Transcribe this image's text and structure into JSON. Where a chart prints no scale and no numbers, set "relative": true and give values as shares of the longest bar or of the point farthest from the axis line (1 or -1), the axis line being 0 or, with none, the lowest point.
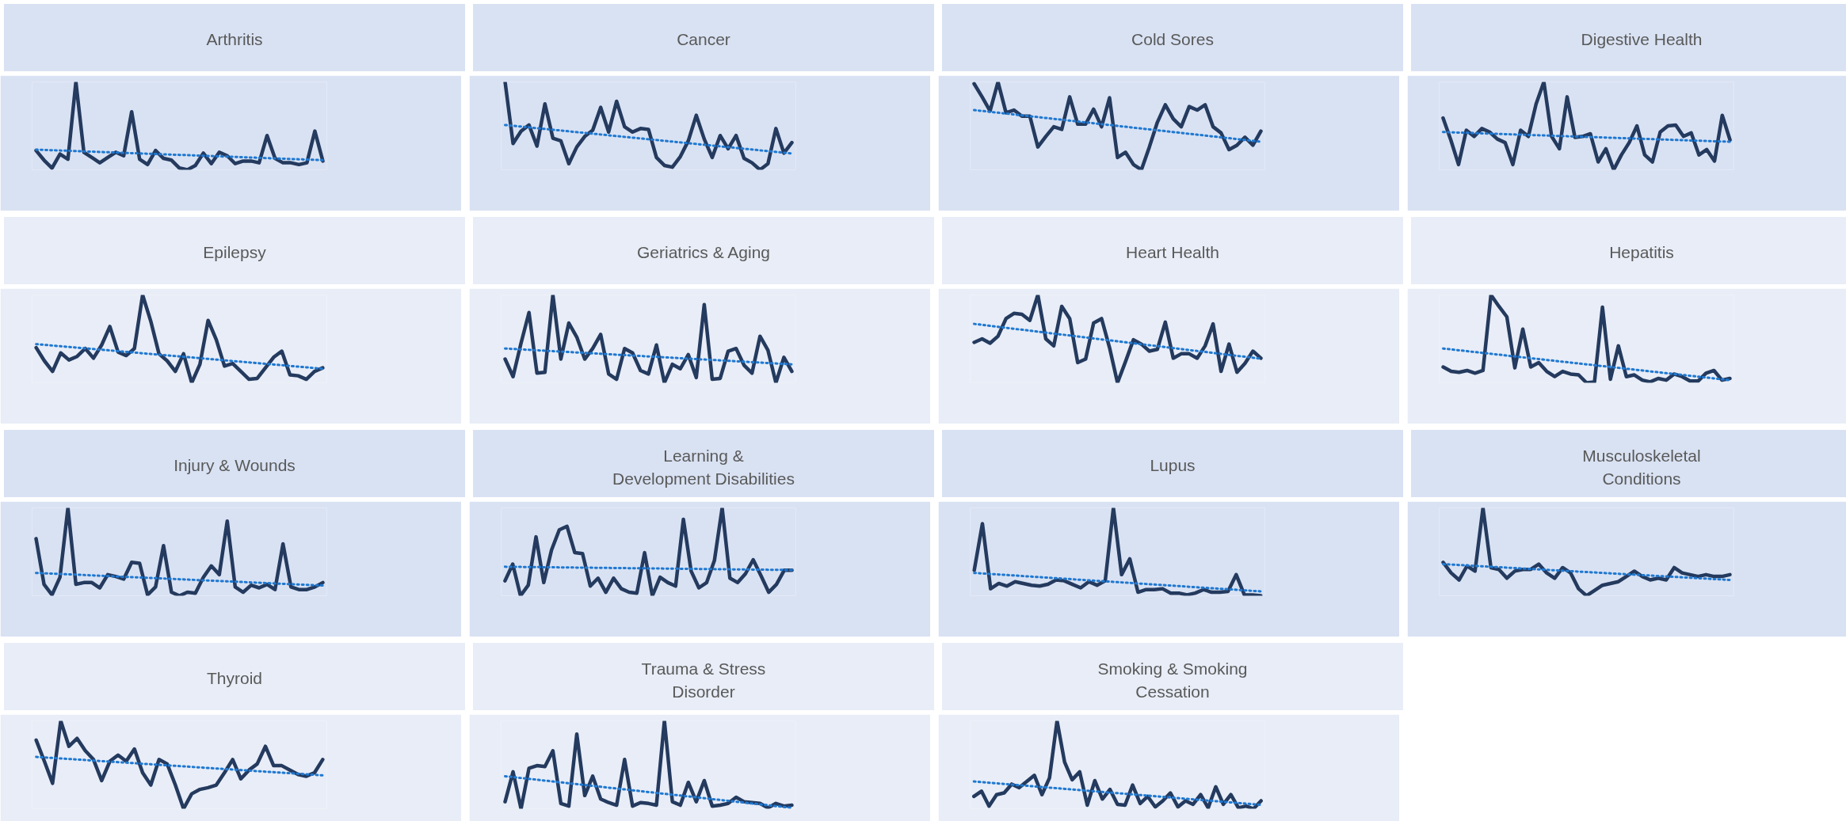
{
  "chart_data": [
    {
      "type": "line",
      "title": "Arthritis",
      "relative": true,
      "categories": [
        null,
        null,
        null,
        null,
        null,
        null,
        null,
        null,
        null,
        null,
        null,
        null,
        null,
        null,
        null,
        null,
        null,
        null,
        null,
        null,
        null,
        null,
        null,
        null,
        null,
        null,
        null,
        null,
        null,
        null,
        null,
        null,
        null,
        null,
        null,
        null,
        null
      ],
      "series": [
        {
          "color": "#243a5e",
          "line_style": "solid",
          "values": [
            0.22,
            0.11,
            0.02,
            0.18,
            0.12,
            1,
            0.2,
            0.14,
            0.08,
            0.14,
            0.2,
            0.16,
            0.66,
            0.12,
            0.06,
            0.22,
            0.13,
            0.11,
            0.02,
            0,
            0.05,
            0.19,
            0.07,
            0.2,
            0.16,
            0.07,
            0.1,
            0.1,
            0.08,
            0.39,
            0.13,
            0.08,
            0.08,
            0.06,
            0.08,
            0.44,
            0.1
          ]
        },
        {
          "type": "line",
          "color": "#1f78d1",
          "line_style": "dotted",
          "values": [
            0.23,
            0.227,
            0.223,
            0.22,
            0.217,
            0.213,
            0.21,
            0.207,
            0.203,
            0.2,
            0.197,
            0.193,
            0.19,
            0.187,
            0.183,
            0.18,
            0.177,
            0.173,
            0.17,
            0.167,
            0.163,
            0.16,
            0.157,
            0.153,
            0.15,
            0.147,
            0.143,
            0.14,
            0.137,
            0.133,
            0.13,
            0.127,
            0.123,
            0.12,
            0.117,
            0.113,
            0.11
          ]
        }
      ]
    },
    {
      "type": "line",
      "title": "Cancer",
      "relative": true,
      "categories": [
        null,
        null,
        null,
        null,
        null,
        null,
        null,
        null,
        null,
        null,
        null,
        null,
        null,
        null,
        null,
        null,
        null,
        null,
        null,
        null,
        null,
        null,
        null,
        null,
        null,
        null,
        null,
        null,
        null,
        null,
        null,
        null,
        null,
        null,
        null,
        null,
        null
      ],
      "series": [
        {
          "color": "#243a5e",
          "line_style": "solid",
          "values": [
            1,
            0.3,
            0.44,
            0.51,
            0.27,
            0.75,
            0.36,
            0.33,
            0.07,
            0.26,
            0.38,
            0.45,
            0.71,
            0.43,
            0.78,
            0.49,
            0.43,
            0.47,
            0.46,
            0.14,
            0.05,
            0.03,
            0.15,
            0.33,
            0.62,
            0.35,
            0.14,
            0.39,
            0.24,
            0.39,
            0.13,
            0.08,
            0,
            0.07,
            0.47,
            0.19,
            0.31
          ]
        },
        {
          "type": "line",
          "color": "#1f78d1",
          "line_style": "dotted",
          "values": [
            0.51,
            0.501,
            0.492,
            0.483,
            0.474,
            0.465,
            0.456,
            0.447,
            0.438,
            0.429,
            0.42,
            0.411,
            0.402,
            0.393,
            0.384,
            0.375,
            0.366,
            0.357,
            0.348,
            0.339,
            0.33,
            0.321,
            0.312,
            0.303,
            0.294,
            0.285,
            0.276,
            0.267,
            0.258,
            0.249,
            0.24,
            0.231,
            0.222,
            0.213,
            0.204,
            0.195,
            0.186
          ]
        }
      ]
    },
    {
      "type": "line",
      "title": "Cold Sores",
      "relative": true,
      "categories": [
        null,
        null,
        null,
        null,
        null,
        null,
        null,
        null,
        null,
        null,
        null,
        null,
        null,
        null,
        null,
        null,
        null,
        null,
        null,
        null,
        null,
        null,
        null,
        null,
        null,
        null,
        null,
        null,
        null,
        null,
        null,
        null,
        null,
        null,
        null,
        null,
        null
      ],
      "series": [
        {
          "color": "#243a5e",
          "line_style": "solid",
          "values": [
            0.98,
            0.83,
            0.67,
            1,
            0.65,
            0.68,
            0.61,
            0.61,
            0.26,
            0.38,
            0.49,
            0.46,
            0.83,
            0.52,
            0.52,
            0.69,
            0.49,
            0.82,
            0.14,
            0.2,
            0.06,
            0,
            0.26,
            0.54,
            0.74,
            0.58,
            0.49,
            0.72,
            0.68,
            0.74,
            0.49,
            0.42,
            0.23,
            0.28,
            0.37,
            0.28,
            0.44
          ]
        },
        {
          "type": "line",
          "color": "#1f78d1",
          "line_style": "dotted",
          "values": [
            0.68,
            0.67,
            0.66,
            0.65,
            0.64,
            0.63,
            0.62,
            0.61,
            0.6,
            0.59,
            0.58,
            0.57,
            0.56,
            0.55,
            0.54,
            0.53,
            0.52,
            0.51,
            0.5,
            0.49,
            0.48,
            0.47,
            0.46,
            0.45,
            0.44,
            0.43,
            0.42,
            0.41,
            0.4,
            0.39,
            0.38,
            0.37,
            0.36,
            0.35,
            0.34,
            0.33,
            0.32
          ]
        }
      ]
    },
    {
      "type": "line",
      "title": "Digestive Health",
      "relative": true,
      "categories": [
        null,
        null,
        null,
        null,
        null,
        null,
        null,
        null,
        null,
        null,
        null,
        null,
        null,
        null,
        null,
        null,
        null,
        null,
        null,
        null,
        null,
        null,
        null,
        null,
        null,
        null,
        null,
        null,
        null,
        null,
        null,
        null,
        null,
        null,
        null,
        null,
        null,
        null
      ],
      "series": [
        {
          "color": "#243a5e",
          "line_style": "solid",
          "values": [
            0.59,
            0.34,
            0.06,
            0.45,
            0.38,
            0.47,
            0.43,
            0.35,
            0.31,
            0.06,
            0.45,
            0.38,
            0.75,
            1,
            0.38,
            0.24,
            0.83,
            0.37,
            0.38,
            0.41,
            0.09,
            0.24,
            0,
            0.17,
            0.31,
            0.5,
            0.17,
            0.09,
            0.43,
            0.5,
            0.51,
            0.38,
            0.42,
            0.17,
            0.23,
            0.1,
            0.62,
            0.34
          ]
        },
        {
          "type": "line",
          "color": "#1f78d1",
          "line_style": "dotted",
          "values": [
            0.43,
            0.427,
            0.424,
            0.421,
            0.418,
            0.415,
            0.412,
            0.409,
            0.406,
            0.403,
            0.4,
            0.397,
            0.394,
            0.391,
            0.388,
            0.385,
            0.382,
            0.379,
            0.376,
            0.373,
            0.37,
            0.367,
            0.364,
            0.361,
            0.358,
            0.355,
            0.352,
            0.349,
            0.346,
            0.343,
            0.34,
            0.337,
            0.334,
            0.331,
            0.328,
            0.325,
            0.322,
            0.319
          ]
        }
      ]
    },
    {
      "type": "line",
      "title": "Epilepsy",
      "relative": true,
      "categories": [
        null,
        null,
        null,
        null,
        null,
        null,
        null,
        null,
        null,
        null,
        null,
        null,
        null,
        null,
        null,
        null,
        null,
        null,
        null,
        null,
        null,
        null,
        null,
        null,
        null,
        null,
        null,
        null,
        null,
        null,
        null,
        null,
        null,
        null,
        null,
        null
      ],
      "series": [
        {
          "color": "#243a5e",
          "line_style": "solid",
          "values": [
            0.4,
            0.25,
            0.13,
            0.34,
            0.26,
            0.3,
            0.39,
            0.28,
            0.43,
            0.64,
            0.35,
            0.31,
            0.39,
            1,
            0.7,
            0.33,
            0.25,
            0.13,
            0.33,
            0,
            0.21,
            0.71,
            0.49,
            0.19,
            0.22,
            0.13,
            0.04,
            0.05,
            0.17,
            0.29,
            0.36,
            0.09,
            0.08,
            0.04,
            0.13,
            0.17
          ]
        },
        {
          "type": "line",
          "color": "#1f78d1",
          "line_style": "dotted",
          "values": [
            0.44,
            0.432,
            0.424,
            0.416,
            0.408,
            0.4,
            0.392,
            0.384,
            0.376,
            0.368,
            0.36,
            0.352,
            0.344,
            0.336,
            0.328,
            0.32,
            0.312,
            0.304,
            0.296,
            0.288,
            0.28,
            0.272,
            0.264,
            0.256,
            0.248,
            0.24,
            0.232,
            0.224,
            0.216,
            0.208,
            0.2,
            0.192,
            0.184,
            0.176,
            0.168,
            0.16
          ]
        }
      ]
    },
    {
      "type": "line",
      "title": "Geriatrics & Aging",
      "relative": true,
      "categories": [
        null,
        null,
        null,
        null,
        null,
        null,
        null,
        null,
        null,
        null,
        null,
        null,
        null,
        null,
        null,
        null,
        null,
        null,
        null,
        null,
        null,
        null,
        null,
        null,
        null,
        null,
        null,
        null,
        null,
        null,
        null,
        null,
        null,
        null,
        null,
        null,
        null
      ],
      "series": [
        {
          "color": "#243a5e",
          "line_style": "solid",
          "values": [
            0.27,
            0.07,
            0.45,
            0.8,
            0.11,
            0.12,
            1,
            0.27,
            0.68,
            0.52,
            0.27,
            0.39,
            0.55,
            0.1,
            0.04,
            0.39,
            0.34,
            0.14,
            0.1,
            0.43,
            0,
            0.21,
            0.16,
            0.32,
            0.06,
            0.89,
            0.04,
            0.05,
            0.36,
            0.39,
            0.2,
            0.11,
            0.53,
            0.37,
            0,
            0.29,
            0.13
          ]
        },
        {
          "type": "line",
          "color": "#1f78d1",
          "line_style": "dotted",
          "values": [
            0.39,
            0.385,
            0.38,
            0.375,
            0.37,
            0.365,
            0.36,
            0.355,
            0.35,
            0.345,
            0.34,
            0.335,
            0.33,
            0.325,
            0.32,
            0.315,
            0.31,
            0.305,
            0.3,
            0.295,
            0.29,
            0.285,
            0.28,
            0.275,
            0.27,
            0.265,
            0.26,
            0.255,
            0.25,
            0.245,
            0.24,
            0.235,
            0.23,
            0.225,
            0.22,
            0.215,
            0.21
          ]
        }
      ]
    },
    {
      "type": "line",
      "title": "Heart Health",
      "relative": true,
      "categories": [
        null,
        null,
        null,
        null,
        null,
        null,
        null,
        null,
        null,
        null,
        null,
        null,
        null,
        null,
        null,
        null,
        null,
        null,
        null,
        null,
        null,
        null,
        null,
        null,
        null,
        null,
        null,
        null,
        null,
        null,
        null,
        null,
        null,
        null,
        null,
        null,
        null
      ],
      "series": [
        {
          "color": "#243a5e",
          "line_style": "solid",
          "values": [
            0.46,
            0.5,
            0.45,
            0.53,
            0.73,
            0.79,
            0.78,
            0.71,
            1,
            0.5,
            0.42,
            0.87,
            0.73,
            0.23,
            0.27,
            0.68,
            0.73,
            0.4,
            0,
            0.24,
            0.49,
            0.44,
            0.36,
            0.38,
            0.69,
            0.28,
            0.33,
            0.33,
            0.28,
            0.42,
            0.67,
            0.13,
            0.44,
            0.12,
            0.22,
            0.36,
            0.28
          ]
        },
        {
          "type": "line",
          "color": "#1f78d1",
          "line_style": "dotted",
          "values": [
            0.67,
            0.659,
            0.648,
            0.637,
            0.626,
            0.615,
            0.604,
            0.593,
            0.582,
            0.571,
            0.56,
            0.549,
            0.538,
            0.527,
            0.516,
            0.505,
            0.494,
            0.483,
            0.472,
            0.461,
            0.45,
            0.439,
            0.428,
            0.417,
            0.406,
            0.395,
            0.384,
            0.373,
            0.362,
            0.351,
            0.34,
            0.329,
            0.318,
            0.307,
            0.296,
            0.285,
            0.274
          ]
        }
      ]
    },
    {
      "type": "line",
      "title": "Hepatitis",
      "relative": true,
      "categories": [
        null,
        null,
        null,
        null,
        null,
        null,
        null,
        null,
        null,
        null,
        null,
        null,
        null,
        null,
        null,
        null,
        null,
        null,
        null,
        null,
        null,
        null,
        null,
        null,
        null,
        null,
        null,
        null,
        null,
        null,
        null,
        null,
        null,
        null,
        null,
        null,
        null
      ],
      "series": [
        {
          "color": "#243a5e",
          "line_style": "solid",
          "values": [
            0.18,
            0.13,
            0.12,
            0.14,
            0.11,
            0.14,
            1,
            0.87,
            0.75,
            0.17,
            0.61,
            0.18,
            0.23,
            0.13,
            0.07,
            0.13,
            0.1,
            0.09,
            0,
            0.01,
            0.86,
            0.04,
            0.42,
            0.07,
            0.09,
            0.03,
            0.01,
            0.05,
            0.03,
            0.1,
            0.07,
            0.02,
            0.02,
            0.11,
            0.14,
            0.03,
            0.05
          ]
        },
        {
          "type": "line",
          "color": "#1f78d1",
          "line_style": "dotted",
          "values": [
            0.39,
            0.38,
            0.37,
            0.36,
            0.35,
            0.34,
            0.33,
            0.32,
            0.31,
            0.3,
            0.29,
            0.28,
            0.27,
            0.26,
            0.25,
            0.24,
            0.23,
            0.22,
            0.21,
            0.2,
            0.19,
            0.18,
            0.17,
            0.16,
            0.15,
            0.14,
            0.13,
            0.12,
            0.11,
            0.1,
            0.09,
            0.08,
            0.07,
            0.06,
            0.05,
            0.04,
            0.03
          ]
        }
      ]
    },
    {
      "type": "line",
      "title": "Injury & Wounds",
      "relative": true,
      "categories": [
        null,
        null,
        null,
        null,
        null,
        null,
        null,
        null,
        null,
        null,
        null,
        null,
        null,
        null,
        null,
        null,
        null,
        null,
        null,
        null,
        null,
        null,
        null,
        null,
        null,
        null,
        null,
        null,
        null,
        null,
        null,
        null,
        null,
        null,
        null,
        null,
        null
      ],
      "series": [
        {
          "color": "#243a5e",
          "line_style": "solid",
          "values": [
            0.65,
            0.13,
            0.01,
            0.21,
            1,
            0.13,
            0.15,
            0.15,
            0.09,
            0.24,
            0.22,
            0.19,
            0.38,
            0.37,
            0.01,
            0.1,
            0.57,
            0.04,
            0,
            0.04,
            0.03,
            0.21,
            0.34,
            0.24,
            0.85,
            0.1,
            0.04,
            0.12,
            0.09,
            0.13,
            0.07,
            0.59,
            0.1,
            0.07,
            0.07,
            0.1,
            0.15
          ]
        },
        {
          "type": "line",
          "color": "#1f78d1",
          "line_style": "dotted",
          "values": [
            0.26,
            0.256,
            0.252,
            0.248,
            0.244,
            0.24,
            0.236,
            0.232,
            0.228,
            0.224,
            0.22,
            0.216,
            0.212,
            0.208,
            0.204,
            0.2,
            0.196,
            0.192,
            0.188,
            0.184,
            0.18,
            0.176,
            0.172,
            0.168,
            0.164,
            0.16,
            0.156,
            0.152,
            0.148,
            0.144,
            0.14,
            0.136,
            0.132,
            0.128,
            0.124,
            0.12,
            0.116
          ]
        }
      ]
    },
    {
      "type": "line",
      "title": "Learning &\nDevelopment Disabilities",
      "relative": true,
      "categories": [
        null,
        null,
        null,
        null,
        null,
        null,
        null,
        null,
        null,
        null,
        null,
        null,
        null,
        null,
        null,
        null,
        null,
        null,
        null,
        null,
        null,
        null,
        null,
        null,
        null,
        null,
        null,
        null,
        null,
        null,
        null,
        null,
        null,
        null,
        null,
        null,
        null,
        null
      ],
      "series": [
        {
          "color": "#243a5e",
          "line_style": "solid",
          "values": [
            0.17,
            0.36,
            0,
            0.12,
            0.67,
            0.15,
            0.52,
            0.75,
            0.79,
            0.49,
            0.48,
            0.11,
            0.2,
            0.04,
            0.2,
            0.08,
            0.04,
            0.03,
            0.49,
            0,
            0.21,
            0.15,
            0.11,
            0.87,
            0.28,
            0.09,
            0.15,
            0.4,
            1,
            0.2,
            0.15,
            0.25,
            0.41,
            0.23,
            0.04,
            0.13,
            0.29,
            0.29
          ]
        },
        {
          "type": "line",
          "color": "#1f78d1",
          "line_style": "dotted",
          "values": [
            0.33,
            0.329,
            0.328,
            0.327,
            0.326,
            0.325,
            0.324,
            0.323,
            0.322,
            0.321,
            0.32,
            0.319,
            0.318,
            0.317,
            0.316,
            0.315,
            0.314,
            0.313,
            0.312,
            0.311,
            0.31,
            0.309,
            0.308,
            0.307,
            0.306,
            0.305,
            0.304,
            0.303,
            0.302,
            0.301,
            0.3,
            0.299,
            0.298,
            0.297,
            0.296,
            0.295,
            0.294,
            0.293
          ]
        }
      ]
    },
    {
      "type": "line",
      "title": "Lupus",
      "relative": true,
      "categories": [
        null,
        null,
        null,
        null,
        null,
        null,
        null,
        null,
        null,
        null,
        null,
        null,
        null,
        null,
        null,
        null,
        null,
        null,
        null,
        null,
        null,
        null,
        null,
        null,
        null,
        null,
        null,
        null,
        null,
        null,
        null,
        null,
        null,
        null,
        null,
        null
      ],
      "series": [
        {
          "color": "#243a5e",
          "line_style": "solid",
          "values": [
            0.29,
            0.82,
            0.08,
            0.14,
            0.11,
            0.16,
            0.14,
            0.12,
            0.11,
            0.13,
            0.18,
            0.17,
            0.13,
            0.09,
            0.16,
            0.12,
            0.17,
            1,
            0.24,
            0.42,
            0.04,
            0.07,
            0.07,
            0.08,
            0.03,
            0.03,
            0.01,
            0.03,
            0.07,
            0.04,
            0.04,
            0.05,
            0.24,
            0.01,
            0.01,
            0
          ]
        },
        {
          "type": "line",
          "color": "#1f78d1",
          "line_style": "dotted",
          "values": [
            0.26,
            0.254,
            0.248,
            0.242,
            0.236,
            0.23,
            0.224,
            0.218,
            0.212,
            0.206,
            0.2,
            0.194,
            0.188,
            0.182,
            0.176,
            0.17,
            0.164,
            0.158,
            0.152,
            0.146,
            0.14,
            0.134,
            0.128,
            0.122,
            0.116,
            0.11,
            0.104,
            0.098,
            0.092,
            0.086,
            0.08,
            0.074,
            0.068,
            0.062,
            0.056,
            0.05
          ]
        }
      ]
    },
    {
      "type": "line",
      "title": "Musculoskeletal\nConditions",
      "relative": true,
      "categories": [
        null,
        null,
        null,
        null,
        null,
        null,
        null,
        null,
        null,
        null,
        null,
        null,
        null,
        null,
        null,
        null,
        null,
        null,
        null,
        null,
        null,
        null,
        null,
        null,
        null,
        null,
        null,
        null,
        null,
        null,
        null,
        null,
        null,
        null,
        null,
        null,
        null
      ],
      "series": [
        {
          "color": "#243a5e",
          "line_style": "solid",
          "values": [
            0.38,
            0.26,
            0.18,
            0.34,
            0.28,
            1,
            0.32,
            0.3,
            0.2,
            0.28,
            0.3,
            0.3,
            0.36,
            0.26,
            0.2,
            0.32,
            0.26,
            0.08,
            0,
            0.06,
            0.12,
            0.14,
            0.16,
            0.22,
            0.28,
            0.22,
            0.18,
            0.2,
            0.18,
            0.32,
            0.26,
            0.24,
            0.22,
            0.24,
            0.22,
            0.22,
            0.24
          ]
        },
        {
          "type": "line",
          "color": "#1f78d1",
          "line_style": "dotted",
          "values": [
            0.36,
            0.355,
            0.35,
            0.345,
            0.34,
            0.335,
            0.33,
            0.325,
            0.32,
            0.315,
            0.31,
            0.305,
            0.3,
            0.295,
            0.29,
            0.285,
            0.28,
            0.275,
            0.27,
            0.265,
            0.26,
            0.255,
            0.25,
            0.245,
            0.24,
            0.235,
            0.23,
            0.225,
            0.22,
            0.215,
            0.21,
            0.205,
            0.2,
            0.195,
            0.19,
            0.185,
            0.18
          ]
        }
      ]
    },
    {
      "type": "line",
      "title": "Thyroid",
      "relative": true,
      "categories": [
        null,
        null,
        null,
        null,
        null,
        null,
        null,
        null,
        null,
        null,
        null,
        null,
        null,
        null,
        null,
        null,
        null,
        null,
        null,
        null,
        null,
        null,
        null,
        null,
        null,
        null,
        null,
        null,
        null,
        null,
        null,
        null,
        null,
        null,
        null,
        null
      ],
      "series": [
        {
          "color": "#243a5e",
          "line_style": "solid",
          "values": [
            0.78,
            0.54,
            0.29,
            1,
            0.71,
            0.8,
            0.66,
            0.56,
            0.32,
            0.54,
            0.61,
            0.54,
            0.68,
            0.41,
            0.27,
            0.56,
            0.51,
            0.27,
            0,
            0.17,
            0.22,
            0.24,
            0.27,
            0.41,
            0.56,
            0.34,
            0.44,
            0.51,
            0.71,
            0.49,
            0.49,
            0.44,
            0.39,
            0.37,
            0.41,
            0.56
          ]
        },
        {
          "type": "line",
          "color": "#1f78d1",
          "line_style": "dotted",
          "values": [
            0.59,
            0.584,
            0.578,
            0.572,
            0.566,
            0.56,
            0.554,
            0.548,
            0.542,
            0.536,
            0.53,
            0.524,
            0.518,
            0.512,
            0.506,
            0.5,
            0.494,
            0.488,
            0.482,
            0.476,
            0.47,
            0.464,
            0.458,
            0.452,
            0.446,
            0.44,
            0.434,
            0.428,
            0.422,
            0.416,
            0.41,
            0.404,
            0.398,
            0.392,
            0.386,
            0.38
          ]
        }
      ]
    },
    {
      "type": "line",
      "title": "Trauma & Stress\nDisorder",
      "relative": true,
      "categories": [
        null,
        null,
        null,
        null,
        null,
        null,
        null,
        null,
        null,
        null,
        null,
        null,
        null,
        null,
        null,
        null,
        null,
        null,
        null,
        null,
        null,
        null,
        null,
        null,
        null,
        null,
        null,
        null,
        null,
        null,
        null,
        null,
        null,
        null,
        null,
        null,
        null
      ],
      "series": [
        {
          "color": "#243a5e",
          "line_style": "solid",
          "values": [
            0.08,
            0.42,
            0,
            0.46,
            0.49,
            0.48,
            0.66,
            0.06,
            0.03,
            0.85,
            0.15,
            0.37,
            0.11,
            0.07,
            0.04,
            0.56,
            0.03,
            0.07,
            0.06,
            0.04,
            1,
            0.08,
            0.04,
            0.3,
            0.08,
            0.32,
            0.03,
            0.04,
            0.06,
            0.13,
            0.08,
            0.07,
            0.06,
            0.01,
            0.06,
            0.03,
            0.04
          ]
        },
        {
          "type": "line",
          "color": "#1f78d1",
          "line_style": "dotted",
          "values": [
            0.37,
            0.36,
            0.35,
            0.34,
            0.33,
            0.32,
            0.31,
            0.3,
            0.29,
            0.28,
            0.27,
            0.26,
            0.25,
            0.24,
            0.23,
            0.22,
            0.21,
            0.2,
            0.19,
            0.18,
            0.17,
            0.16,
            0.15,
            0.14,
            0.13,
            0.12,
            0.11,
            0.1,
            0.09,
            0.08,
            0.07,
            0.06,
            0.05,
            0.04,
            0.03,
            0.02,
            0.01
          ]
        }
      ]
    },
    {
      "type": "line",
      "title": "Smoking & Smoking\nCessation",
      "relative": true,
      "categories": [
        null,
        null,
        null,
        null,
        null,
        null,
        null,
        null,
        null,
        null,
        null,
        null,
        null,
        null,
        null,
        null,
        null,
        null,
        null,
        null,
        null,
        null,
        null,
        null,
        null,
        null,
        null,
        null,
        null,
        null,
        null,
        null,
        null,
        null,
        null,
        null,
        null,
        null,
        null
      ],
      "series": [
        {
          "color": "#243a5e",
          "line_style": "solid",
          "values": [
            0.14,
            0.2,
            0.03,
            0.16,
            0.18,
            0.28,
            0.24,
            0.31,
            0.38,
            0.16,
            0.35,
            1,
            0.53,
            0.33,
            0.42,
            0.04,
            0.32,
            0.11,
            0.22,
            0.05,
            0.04,
            0.27,
            0.06,
            0.14,
            0.02,
            0.09,
            0.18,
            0.02,
            0.09,
            0.05,
            0.16,
            0.01,
            0.25,
            0.05,
            0.16,
            0.01,
            0.03,
            0,
            0.09
          ]
        },
        {
          "type": "line",
          "color": "#1f78d1",
          "line_style": "dotted",
          "values": [
            0.31,
            0.303,
            0.296,
            0.289,
            0.282,
            0.275,
            0.268,
            0.261,
            0.254,
            0.247,
            0.24,
            0.233,
            0.226,
            0.219,
            0.212,
            0.205,
            0.198,
            0.191,
            0.184,
            0.177,
            0.17,
            0.163,
            0.156,
            0.149,
            0.142,
            0.135,
            0.128,
            0.121,
            0.114,
            0.107,
            0.1,
            0.093,
            0.086,
            0.079,
            0.072,
            0.065,
            0.058,
            0.051,
            0.044
          ]
        }
      ]
    }
  ]
}
